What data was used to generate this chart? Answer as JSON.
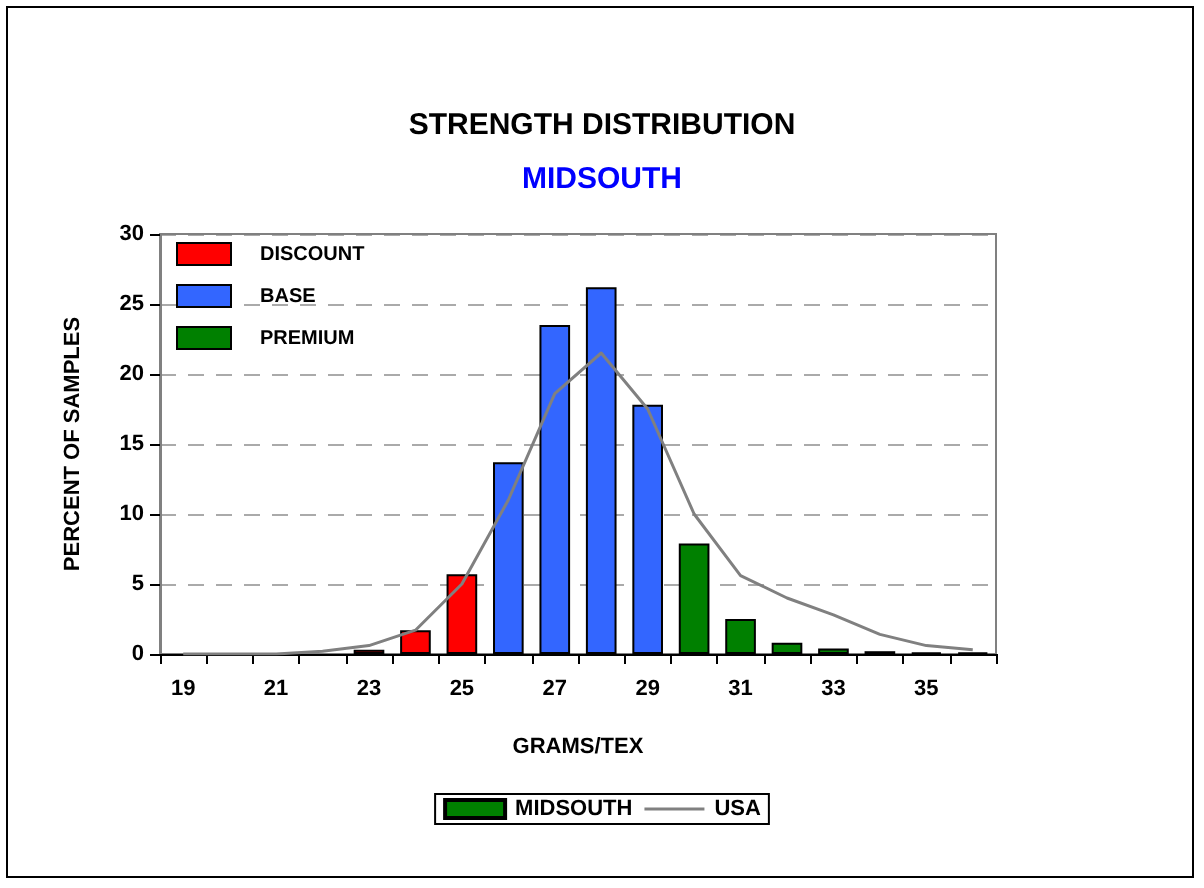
{
  "chart_data": {
    "type": "bar",
    "title": "STRENGTH DISTRIBUTION",
    "subtitle": "MIDSOUTH",
    "xlabel": "GRAMS/TEX",
    "ylabel": "PERCENT OF SAMPLES",
    "categories": [
      "19",
      null,
      "21",
      null,
      "23",
      null,
      "25",
      null,
      "27",
      null,
      "29",
      null,
      "31",
      null,
      "33",
      null,
      "35",
      null
    ],
    "series": [
      {
        "name": "MIDSOUTH",
        "color": "#008000",
        "values": [
          0,
          0,
          0,
          0,
          0.3,
          1.7,
          5.7,
          13.7,
          23.5,
          26.2,
          17.8,
          7.9,
          2.5,
          0.8,
          0.4,
          0.2,
          0.1,
          0.1
        ],
        "colors": [
          "#ff0000",
          "#ff0000",
          "#ff0000",
          "#ff0000",
          "#ff0000",
          "#ff0000",
          "#ff0000",
          "#3366ff",
          "#3366ff",
          "#3366ff",
          "#3366ff",
          "#008000",
          "#008000",
          "#008000",
          "#008000",
          "#008000",
          "#008000",
          "#008000"
        ]
      },
      {
        "name": "USA",
        "type": "line",
        "color": "#808080",
        "values": [
          0,
          0,
          0,
          0.2,
          0.6,
          1.7,
          5,
          11,
          18.6,
          21.5,
          17.5,
          10,
          5.6,
          4,
          2.8,
          1.4,
          0.6,
          0.3
        ]
      }
    ],
    "annotations": [
      "DISCOUNT",
      "BASE",
      "PREMIUM"
    ],
    "ylim": [
      0,
      30
    ],
    "yticks": [
      0,
      5,
      10,
      15,
      20,
      25,
      30
    ],
    "grid": "y",
    "legend": "bottom",
    "marker": "none"
  }
}
